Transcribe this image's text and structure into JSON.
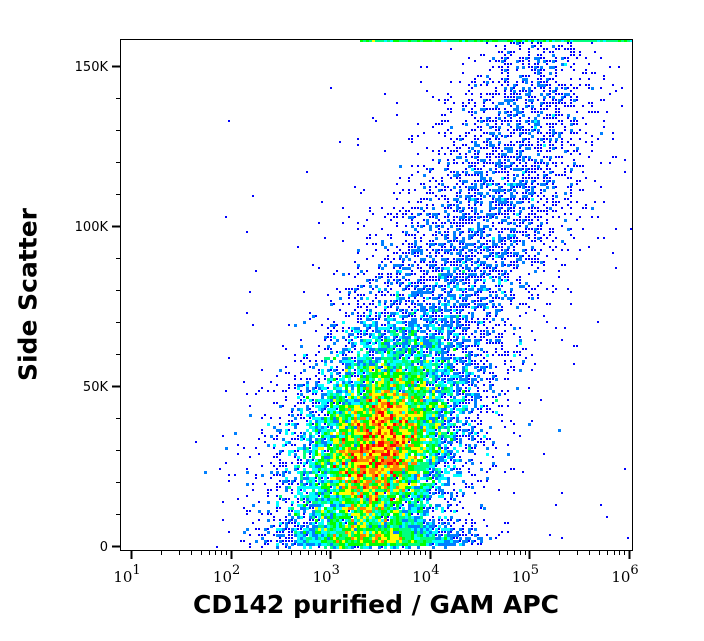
{
  "chart_data": {
    "type": "scatter",
    "subtype": "flow-cytometry-density-pseudocolor",
    "title": "",
    "xlabel": "CD142 purified / GAM APC",
    "ylabel": "Side Scatter",
    "x_scale": "log",
    "y_scale": "linear",
    "xlim": [
      6,
      1100000
    ],
    "ylim": [
      -1000,
      158000
    ],
    "x_ticks": [
      {
        "value": 10,
        "label": "10",
        "exp": "1"
      },
      {
        "value": 100,
        "label": "10",
        "exp": "2"
      },
      {
        "value": 1000,
        "label": "10",
        "exp": "3"
      },
      {
        "value": 10000,
        "label": "10",
        "exp": "4"
      },
      {
        "value": 100000,
        "label": "10",
        "exp": "5"
      },
      {
        "value": 1000000,
        "label": "10",
        "exp": "6"
      }
    ],
    "y_ticks": [
      {
        "value": 0,
        "label": "0"
      },
      {
        "value": 50000,
        "label": "50K"
      },
      {
        "value": 100000,
        "label": "100K"
      },
      {
        "value": 150000,
        "label": "150K"
      }
    ],
    "grid": false,
    "legend": null,
    "populations": [
      {
        "name": "main population",
        "center_x": 3000,
        "center_y": 31000,
        "peak_density_color": "#ff0000",
        "spread_x_decades": 0.35,
        "spread_y": 14000
      },
      {
        "name": "diffuse upper tail",
        "x_range": [
          3000,
          300000
        ],
        "y_range": [
          40000,
          158000
        ],
        "density": "sparse"
      }
    ],
    "colormap": [
      "#0000ff",
      "#0080ff",
      "#00ffff",
      "#00ff80",
      "#00ff00",
      "#ffff00",
      "#ff8000",
      "#ff0000"
    ]
  },
  "axes": {
    "x_label": "CD142 purified / GAM APC",
    "y_label": "Side Scatter"
  }
}
